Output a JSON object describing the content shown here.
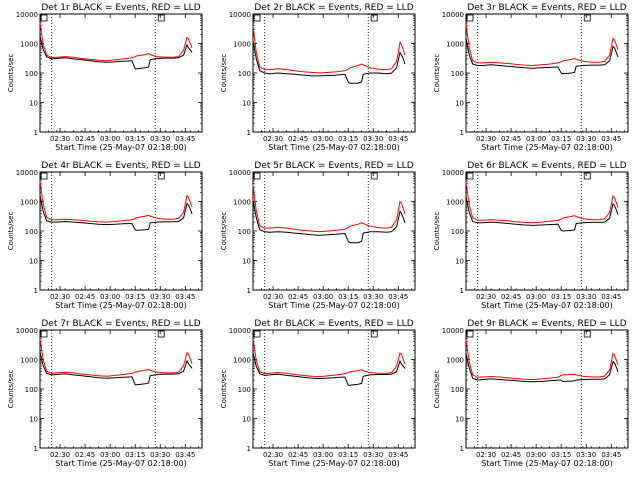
{
  "chart_data": {
    "type": "line",
    "layout": "3x3 grid of panels",
    "x_axis": {
      "label": "Start Time (25-May-07 02:18:00)",
      "tick_labels": [
        "02:30",
        "02:45",
        "03:00",
        "03:15",
        "03:30",
        "03:45"
      ],
      "tick_minutes": [
        12,
        27,
        42,
        57,
        72,
        87
      ],
      "range_minutes": [
        0,
        97
      ]
    },
    "y_axis": {
      "label": "Counts/sec",
      "scale": "log",
      "range": [
        1,
        10000
      ],
      "tick_labels": [
        "1",
        "10",
        "100",
        "1000",
        "10000"
      ]
    },
    "vlines_minutes": [
      7,
      69
    ],
    "colors": {
      "events": "#000000",
      "lld": "#ff0000"
    },
    "series_names": [
      "Events",
      "LLD"
    ],
    "x_minutes": [
      0,
      2,
      4,
      7,
      10,
      15,
      20,
      25,
      30,
      35,
      40,
      45,
      50,
      55,
      57,
      58,
      63,
      65,
      66,
      70,
      75,
      80,
      83,
      86,
      88,
      89,
      90,
      91
    ],
    "panels": [
      {
        "title": "Det 1r BLACK = Events, RED = LLD",
        "events": [
          1800,
          600,
          350,
          300,
          310,
          330,
          300,
          280,
          260,
          240,
          230,
          240,
          250,
          260,
          140,
          140,
          150,
          160,
          280,
          310,
          320,
          320,
          330,
          400,
          900,
          700,
          600,
          500
        ],
        "lld": [
          5000,
          900,
          400,
          330,
          340,
          360,
          340,
          310,
          290,
          270,
          260,
          280,
          300,
          330,
          360,
          380,
          420,
          450,
          420,
          360,
          340,
          340,
          360,
          600,
          1600,
          1400,
          1000,
          700
        ]
      },
      {
        "title": "Det 2r BLACK = Events, RED = LLD",
        "events": [
          1200,
          300,
          120,
          100,
          95,
          100,
          95,
          90,
          85,
          80,
          80,
          82,
          85,
          90,
          50,
          45,
          45,
          50,
          90,
          100,
          100,
          95,
          100,
          150,
          500,
          400,
          300,
          200
        ],
        "lld": [
          4000,
          500,
          160,
          130,
          130,
          140,
          130,
          120,
          110,
          105,
          100,
          105,
          110,
          120,
          135,
          150,
          180,
          200,
          190,
          150,
          135,
          130,
          140,
          250,
          1100,
          900,
          600,
          400
        ]
      },
      {
        "title": "Det 3r BLACK = Events, RED = LLD",
        "events": [
          1500,
          400,
          200,
          180,
          180,
          190,
          180,
          170,
          160,
          150,
          145,
          150,
          155,
          160,
          100,
          95,
          100,
          105,
          170,
          180,
          185,
          185,
          190,
          260,
          800,
          700,
          500,
          350
        ],
        "lld": [
          4500,
          700,
          260,
          220,
          220,
          230,
          220,
          210,
          195,
          185,
          180,
          190,
          200,
          220,
          240,
          260,
          290,
          310,
          290,
          250,
          230,
          230,
          250,
          400,
          1500,
          1300,
          900,
          600
        ]
      },
      {
        "title": "Det 4r BLACK = Events, RED = LLD",
        "events": [
          1600,
          450,
          220,
          200,
          200,
          210,
          200,
          190,
          180,
          170,
          165,
          170,
          175,
          180,
          110,
          105,
          110,
          115,
          190,
          200,
          205,
          205,
          210,
          280,
          850,
          750,
          550,
          380
        ],
        "lld": [
          4800,
          800,
          290,
          240,
          240,
          250,
          240,
          230,
          215,
          205,
          200,
          210,
          225,
          240,
          265,
          285,
          320,
          340,
          320,
          270,
          250,
          250,
          270,
          430,
          1600,
          1400,
          950,
          650
        ]
      },
      {
        "title": "Det 5r BLACK = Events, RED = LLD",
        "events": [
          1100,
          280,
          110,
          95,
          90,
          95,
          90,
          85,
          80,
          75,
          72,
          75,
          78,
          82,
          45,
          40,
          40,
          45,
          85,
          95,
          95,
          90,
          95,
          140,
          460,
          380,
          280,
          190
        ],
        "lld": [
          3800,
          480,
          150,
          125,
          125,
          135,
          125,
          115,
          105,
          100,
          95,
          100,
          105,
          115,
          130,
          145,
          170,
          190,
          180,
          145,
          130,
          125,
          135,
          240,
          1000,
          850,
          580,
          380
        ]
      },
      {
        "title": "Det 6r BLACK = Events, RED = LLD",
        "events": [
          1500,
          420,
          210,
          190,
          190,
          200,
          190,
          180,
          170,
          160,
          155,
          160,
          165,
          170,
          105,
          100,
          105,
          110,
          180,
          190,
          195,
          195,
          200,
          270,
          820,
          720,
          520,
          360
        ],
        "lld": [
          4600,
          750,
          280,
          230,
          230,
          240,
          230,
          220,
          205,
          195,
          190,
          200,
          215,
          230,
          255,
          275,
          310,
          330,
          310,
          260,
          240,
          240,
          260,
          420,
          1550,
          1350,
          920,
          620
        ]
      },
      {
        "title": "Det 7r BLACK = Events, RED = LLD",
        "events": [
          1800,
          600,
          340,
          300,
          310,
          330,
          300,
          280,
          260,
          240,
          230,
          240,
          250,
          260,
          140,
          140,
          150,
          160,
          280,
          310,
          320,
          320,
          330,
          400,
          900,
          700,
          600,
          500
        ],
        "lld": [
          5200,
          950,
          400,
          340,
          350,
          370,
          350,
          320,
          300,
          280,
          270,
          290,
          310,
          340,
          370,
          390,
          430,
          460,
          430,
          370,
          350,
          350,
          370,
          620,
          1700,
          1500,
          1050,
          720
        ]
      },
      {
        "title": "Det 8r BLACK = Events, RED = LLD",
        "events": [
          1700,
          580,
          330,
          290,
          300,
          320,
          290,
          270,
          250,
          235,
          225,
          235,
          245,
          255,
          135,
          135,
          145,
          155,
          270,
          300,
          310,
          310,
          320,
          390,
          880,
          690,
          590,
          490
        ],
        "lld": [
          5000,
          920,
          390,
          330,
          340,
          360,
          340,
          310,
          290,
          270,
          260,
          280,
          300,
          330,
          360,
          380,
          420,
          450,
          420,
          360,
          340,
          340,
          360,
          600,
          1650,
          1450,
          1000,
          700
        ]
      },
      {
        "title": "Det 9r BLACK = Events, RED = LLD",
        "events": [
          1600,
          500,
          230,
          200,
          210,
          220,
          210,
          200,
          190,
          180,
          175,
          180,
          190,
          200,
          200,
          180,
          185,
          190,
          200,
          210,
          215,
          215,
          220,
          300,
          850,
          750,
          550,
          380
        ],
        "lld": [
          4700,
          820,
          300,
          250,
          255,
          265,
          255,
          240,
          225,
          215,
          210,
          220,
          235,
          250,
          290,
          300,
          310,
          310,
          300,
          270,
          255,
          255,
          275,
          440,
          1600,
          1400,
          950,
          650
        ]
      }
    ]
  }
}
